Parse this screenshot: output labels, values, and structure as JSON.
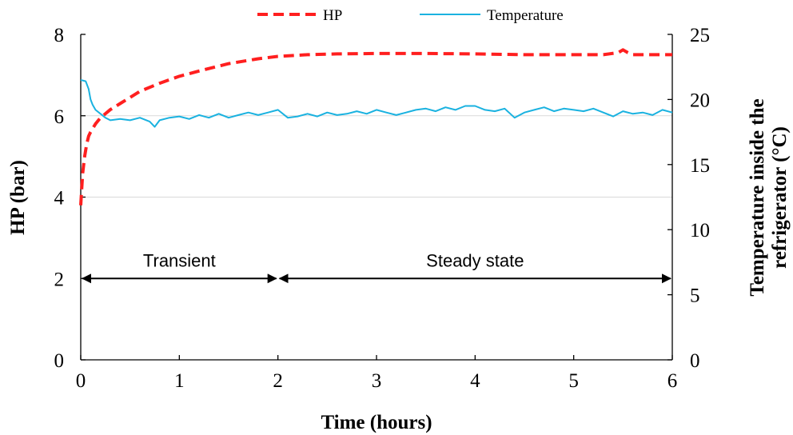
{
  "chart_data": {
    "type": "line",
    "title": "",
    "xlabel": "Time (hours)",
    "ylabel_left": "HP (bar)",
    "ylabel_right_lines": [
      "Temperature inside the",
      "refrigerator (°C)"
    ],
    "xlim": [
      0,
      6
    ],
    "ylim_left": [
      0,
      8
    ],
    "ylim_right": [
      0,
      25
    ],
    "x_ticks": [
      0,
      1,
      2,
      3,
      4,
      5,
      6
    ],
    "y_left_ticks": [
      0,
      2,
      4,
      6,
      8
    ],
    "y_right_ticks": [
      0,
      5,
      10,
      15,
      20,
      25
    ],
    "grid": "horizontal gridlines at y=4 and y=6 (left axis)",
    "legend_placement": "top-center",
    "series": [
      {
        "name": "HP",
        "axis": "left",
        "style": "dashed",
        "color": "#ff1f1f",
        "x": [
          0,
          0.01,
          0.02,
          0.04,
          0.06,
          0.08,
          0.1,
          0.15,
          0.2,
          0.3,
          0.4,
          0.5,
          0.6,
          0.8,
          1.0,
          1.2,
          1.5,
          1.8,
          2.0,
          2.3,
          2.6,
          3.0,
          3.5,
          4.0,
          4.5,
          5.0,
          5.3,
          5.45,
          5.5,
          5.55,
          5.6,
          5.8,
          6.0
        ],
        "values": [
          3.8,
          4.2,
          4.6,
          5.0,
          5.3,
          5.5,
          5.6,
          5.8,
          5.95,
          6.15,
          6.3,
          6.45,
          6.6,
          6.8,
          6.97,
          7.1,
          7.28,
          7.4,
          7.46,
          7.5,
          7.52,
          7.53,
          7.53,
          7.52,
          7.5,
          7.5,
          7.5,
          7.55,
          7.62,
          7.55,
          7.5,
          7.5,
          7.5
        ]
      },
      {
        "name": "Temperature",
        "axis": "right",
        "style": "solid",
        "color": "#1ab2e0",
        "x": [
          0,
          0.05,
          0.08,
          0.1,
          0.12,
          0.15,
          0.2,
          0.25,
          0.3,
          0.4,
          0.5,
          0.6,
          0.7,
          0.75,
          0.8,
          0.9,
          1.0,
          1.1,
          1.2,
          1.3,
          1.4,
          1.5,
          1.6,
          1.7,
          1.8,
          1.9,
          2.0,
          2.1,
          2.2,
          2.3,
          2.4,
          2.5,
          2.6,
          2.7,
          2.8,
          2.9,
          3.0,
          3.1,
          3.2,
          3.3,
          3.4,
          3.5,
          3.6,
          3.7,
          3.8,
          3.9,
          4.0,
          4.1,
          4.2,
          4.3,
          4.4,
          4.5,
          4.6,
          4.7,
          4.8,
          4.9,
          5.0,
          5.1,
          5.2,
          5.3,
          5.4,
          5.5,
          5.6,
          5.7,
          5.8,
          5.9,
          6.0
        ],
        "values": [
          21.5,
          21.4,
          20.8,
          20.0,
          19.6,
          19.2,
          18.9,
          18.6,
          18.4,
          18.5,
          18.4,
          18.6,
          18.3,
          17.9,
          18.4,
          18.6,
          18.7,
          18.5,
          18.8,
          18.6,
          18.9,
          18.6,
          18.8,
          19.0,
          18.8,
          19.0,
          19.2,
          18.6,
          18.7,
          18.9,
          18.7,
          19.0,
          18.8,
          18.9,
          19.1,
          18.9,
          19.2,
          19.0,
          18.8,
          19.0,
          19.2,
          19.3,
          19.1,
          19.4,
          19.2,
          19.5,
          19.5,
          19.2,
          19.1,
          19.3,
          18.6,
          19.0,
          19.2,
          19.4,
          19.1,
          19.3,
          19.2,
          19.1,
          19.3,
          19.0,
          18.7,
          19.1,
          18.9,
          19.0,
          18.8,
          19.2,
          19.0
        ]
      }
    ],
    "annotations": [
      {
        "text": "Transient",
        "x_from": 0,
        "x_to": 2,
        "y": 2
      },
      {
        "text": "Steady state",
        "x_from": 2,
        "x_to": 6,
        "y": 2
      }
    ]
  }
}
